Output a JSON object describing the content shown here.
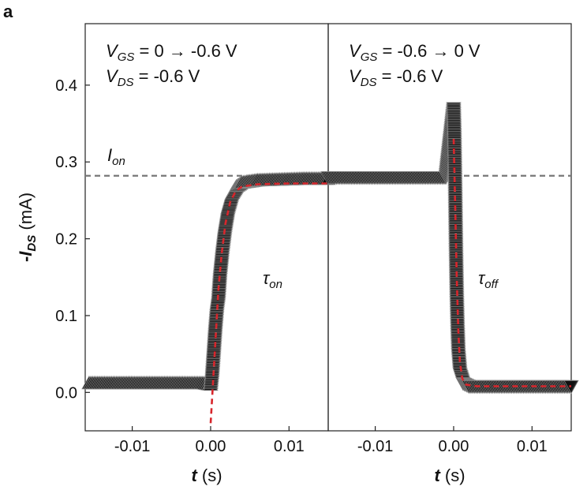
{
  "panel_label": "a",
  "chart_data": {
    "type": "scatter",
    "layout": "two-panel",
    "ylabel": {
      "prefix": "-",
      "symbol": "I",
      "subscript": "DS",
      "unit": "(mA)"
    },
    "xlabel": {
      "symbol": "t",
      "unit": "(s)"
    },
    "ylim": [
      -0.05,
      0.48
    ],
    "yticks": [
      0.0,
      0.1,
      0.2,
      0.3,
      0.4
    ],
    "ytick_labels": [
      "0.0",
      "0.1",
      "0.2",
      "0.3",
      "0.4"
    ],
    "xlim": [
      -0.016,
      0.015
    ],
    "xticks": [
      -0.01,
      0.0,
      0.01
    ],
    "xtick_labels": [
      "-0.01",
      "0.00",
      "0.01"
    ],
    "i_on_level": 0.282,
    "i_on_label": {
      "symbol": "I",
      "subscript": "on"
    },
    "panels": [
      {
        "id": "on",
        "annotation_line1": {
          "symbol": "V",
          "subscript": "GS",
          "text": " =  0   →  -0.6 V"
        },
        "annotation_line2": {
          "symbol": "V",
          "subscript": "DS",
          "text": " = -0.6 V"
        },
        "tau_label": {
          "symbol": "τ",
          "subscript": "on"
        },
        "markers": "up-triangles",
        "data_points": [
          {
            "t": -0.0155,
            "i": 0.012
          },
          {
            "t": -0.012,
            "i": 0.012
          },
          {
            "t": -0.008,
            "i": 0.012
          },
          {
            "t": -0.004,
            "i": 0.012
          },
          {
            "t": -0.001,
            "i": 0.012
          },
          {
            "t": 0.0,
            "i": 0.01
          },
          {
            "t": 0.0002,
            "i": 0.03
          },
          {
            "t": 0.0004,
            "i": 0.06
          },
          {
            "t": 0.0006,
            "i": 0.09
          },
          {
            "t": 0.0008,
            "i": 0.115
          },
          {
            "t": 0.001,
            "i": 0.13
          },
          {
            "t": 0.0012,
            "i": 0.16
          },
          {
            "t": 0.0015,
            "i": 0.19
          },
          {
            "t": 0.0018,
            "i": 0.215
          },
          {
            "t": 0.0022,
            "i": 0.24
          },
          {
            "t": 0.0027,
            "i": 0.258
          },
          {
            "t": 0.0033,
            "i": 0.268
          },
          {
            "t": 0.004,
            "i": 0.273
          },
          {
            "t": 0.006,
            "i": 0.276
          },
          {
            "t": 0.009,
            "i": 0.277
          },
          {
            "t": 0.012,
            "i": 0.278
          },
          {
            "t": 0.015,
            "i": 0.278
          }
        ],
        "fit": [
          {
            "t": 0.0,
            "i": -0.04
          },
          {
            "t": 0.001,
            "i": 0.135
          },
          {
            "t": 0.0014,
            "i": 0.18
          },
          {
            "t": 0.0019,
            "i": 0.22
          },
          {
            "t": 0.0025,
            "i": 0.248
          },
          {
            "t": 0.0032,
            "i": 0.262
          },
          {
            "t": 0.004,
            "i": 0.268
          },
          {
            "t": 0.006,
            "i": 0.271
          },
          {
            "t": 0.01,
            "i": 0.272
          },
          {
            "t": 0.015,
            "i": 0.272
          }
        ]
      },
      {
        "id": "off",
        "annotation_line1": {
          "symbol": "V",
          "subscript": "GS",
          "text": " = -0.6   →   0 V"
        },
        "annotation_line2": {
          "symbol": "V",
          "subscript": "DS",
          "text": " = -0.6 V"
        },
        "tau_label": {
          "symbol": "τ",
          "subscript": "off"
        },
        "markers": "down-triangles",
        "data_points": [
          {
            "t": -0.016,
            "i": 0.28
          },
          {
            "t": -0.012,
            "i": 0.28
          },
          {
            "t": -0.008,
            "i": 0.28
          },
          {
            "t": -0.004,
            "i": 0.28
          },
          {
            "t": -0.001,
            "i": 0.28
          },
          {
            "t": 0.0,
            "i": 0.37
          },
          {
            "t": 0.0001,
            "i": 0.33
          },
          {
            "t": 0.0002,
            "i": 0.26
          },
          {
            "t": 0.0003,
            "i": 0.18
          },
          {
            "t": 0.0004,
            "i": 0.12
          },
          {
            "t": 0.0005,
            "i": 0.08
          },
          {
            "t": 0.0006,
            "i": 0.05
          },
          {
            "t": 0.0008,
            "i": 0.025
          },
          {
            "t": 0.0012,
            "i": 0.012
          },
          {
            "t": 0.002,
            "i": 0.008
          },
          {
            "t": 0.005,
            "i": 0.008
          },
          {
            "t": 0.01,
            "i": 0.008
          },
          {
            "t": 0.015,
            "i": 0.008
          }
        ],
        "fit": [
          {
            "t": 0.0,
            "i": 0.33
          },
          {
            "t": 0.0002,
            "i": 0.24
          },
          {
            "t": 0.0004,
            "i": 0.15
          },
          {
            "t": 0.0006,
            "i": 0.08
          },
          {
            "t": 0.0008,
            "i": 0.04
          },
          {
            "t": 0.0011,
            "i": 0.018
          },
          {
            "t": 0.0016,
            "i": 0.01
          },
          {
            "t": 0.003,
            "i": 0.008
          },
          {
            "t": 0.015,
            "i": 0.008
          }
        ]
      }
    ]
  },
  "colors": {
    "markers": "#111111",
    "marker_outline": "#888888",
    "fit": "#d7262c",
    "ion_line": "#777777",
    "frame": "#222222"
  }
}
